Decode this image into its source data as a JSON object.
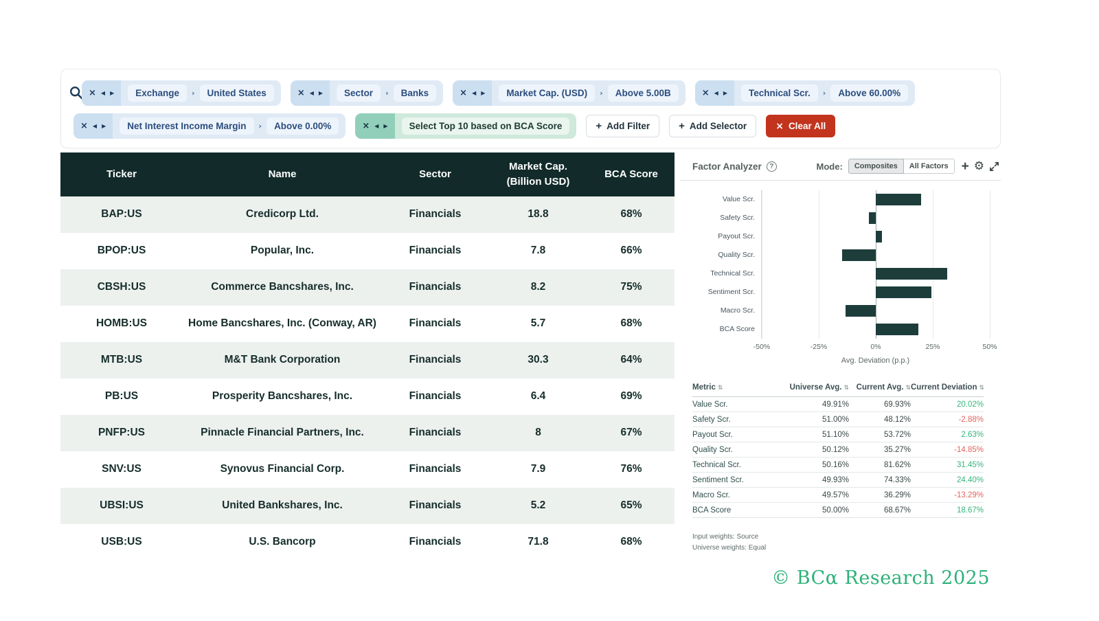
{
  "filters": {
    "row1": [
      {
        "kind": "filter",
        "field": "Exchange",
        "value": "United States"
      },
      {
        "kind": "filter",
        "field": "Sector",
        "value": "Banks"
      },
      {
        "kind": "filter",
        "field": "Market Cap. (USD)",
        "value": "Above 5.00B"
      },
      {
        "kind": "filter",
        "field": "Technical Scr.",
        "value": "Above 60.00%"
      }
    ],
    "row2": [
      {
        "kind": "filter",
        "field": "Net Interest Income Margin",
        "value": "Above 0.00%"
      },
      {
        "kind": "selector",
        "field": "Select Top 10 based on BCA Score"
      }
    ],
    "add_filter_label": "Add Filter",
    "add_selector_label": "Add Selector",
    "clear_all_label": "Clear All"
  },
  "table": {
    "columns": [
      "Ticker",
      "Name",
      "Sector",
      "Market Cap.\n(Billion USD)",
      "BCA Score"
    ],
    "rows": [
      [
        "BAP:US",
        "Credicorp Ltd.",
        "Financials",
        "18.8",
        "68%"
      ],
      [
        "BPOP:US",
        "Popular, Inc.",
        "Financials",
        "7.8",
        "66%"
      ],
      [
        "CBSH:US",
        "Commerce Bancshares, Inc.",
        "Financials",
        "8.2",
        "75%"
      ],
      [
        "HOMB:US",
        "Home Bancshares, Inc. (Conway, AR)",
        "Financials",
        "5.7",
        "68%"
      ],
      [
        "MTB:US",
        "M&T Bank Corporation",
        "Financials",
        "30.3",
        "64%"
      ],
      [
        "PB:US",
        "Prosperity Bancshares, Inc.",
        "Financials",
        "6.4",
        "69%"
      ],
      [
        "PNFP:US",
        "Pinnacle Financial Partners, Inc.",
        "Financials",
        "8",
        "67%"
      ],
      [
        "SNV:US",
        "Synovus Financial Corp.",
        "Financials",
        "7.9",
        "76%"
      ],
      [
        "UBSI:US",
        "United Bankshares, Inc.",
        "Financials",
        "5.2",
        "65%"
      ],
      [
        "USB:US",
        "U.S. Bancorp",
        "Financials",
        "71.8",
        "68%"
      ]
    ]
  },
  "factor_analyzer": {
    "title": "Factor Analyzer",
    "mode_label": "Mode:",
    "mode_options": [
      "Composites",
      "All Factors"
    ],
    "selected_mode": "Composites",
    "metrics_table": {
      "columns": [
        "Metric",
        "Universe Avg.",
        "Current Avg.",
        "Current Deviation"
      ],
      "rows": [
        {
          "metric": "Value Scr.",
          "universe_avg": "49.91%",
          "current_avg": "69.93%",
          "current_deviation": "20.02%"
        },
        {
          "metric": "Safety Scr.",
          "universe_avg": "51.00%",
          "current_avg": "48.12%",
          "current_deviation": "-2.88%"
        },
        {
          "metric": "Payout Scr.",
          "universe_avg": "51.10%",
          "current_avg": "53.72%",
          "current_deviation": "2.63%"
        },
        {
          "metric": "Quality Scr.",
          "universe_avg": "50.12%",
          "current_avg": "35.27%",
          "current_deviation": "-14.85%"
        },
        {
          "metric": "Technical Scr.",
          "universe_avg": "50.16%",
          "current_avg": "81.62%",
          "current_deviation": "31.45%"
        },
        {
          "metric": "Sentiment Scr.",
          "universe_avg": "49.93%",
          "current_avg": "74.33%",
          "current_deviation": "24.40%"
        },
        {
          "metric": "Macro Scr.",
          "universe_avg": "49.57%",
          "current_avg": "36.29%",
          "current_deviation": "-13.29%"
        },
        {
          "metric": "BCA Score",
          "universe_avg": "50.00%",
          "current_avg": "68.67%",
          "current_deviation": "18.67%"
        }
      ]
    },
    "footnotes": [
      "Input weights: Source",
      "Universe weights: Equal"
    ]
  },
  "chart_data": {
    "type": "bar",
    "orientation": "horizontal",
    "categories": [
      "Value Scr.",
      "Safety Scr.",
      "Payout Scr.",
      "Quality Scr.",
      "Technical Scr.",
      "Sentiment Scr.",
      "Macro Scr.",
      "BCA Score"
    ],
    "values": [
      20.02,
      -2.88,
      2.63,
      -14.85,
      31.45,
      24.4,
      -13.29,
      18.67
    ],
    "xlabel": "Avg. Deviation (p.p.)",
    "xlim": [
      -50,
      50
    ],
    "xticks": [
      -50,
      -25,
      0,
      25,
      50
    ],
    "xtick_labels": [
      "-50%",
      "-25%",
      "0%",
      "25%",
      "50%"
    ],
    "bar_color": "#1d3d3b",
    "grid": true
  },
  "colors": {
    "table_header_bg": "#122b2a",
    "row_alt_bg": "#edf1ee",
    "chip_blue_bg": "#dfeaf5",
    "chip_green_bg": "#cfe9dc",
    "clear_all_bg": "#c2341e",
    "positive": "#35b47c",
    "negative": "#e0655f",
    "brand_green": "#2cb179"
  },
  "footer": {
    "copyright": "© BCα Research 2025"
  }
}
